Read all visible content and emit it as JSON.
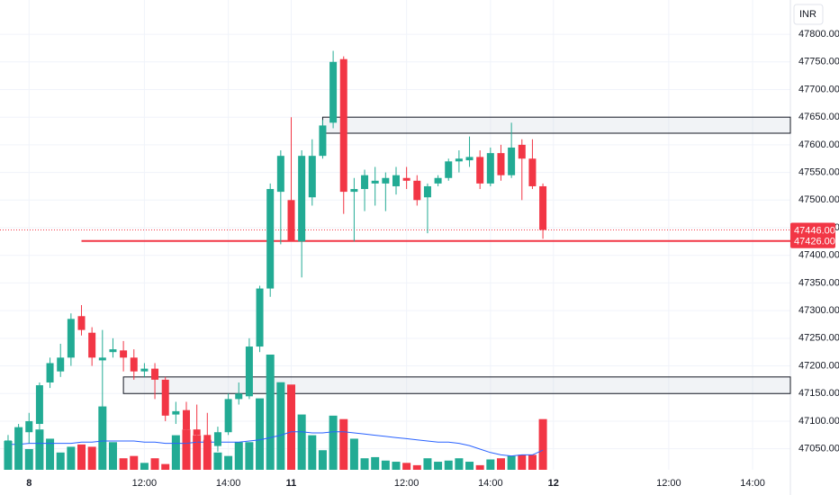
{
  "chart_data": {
    "type": "candlestick",
    "currency": "INR",
    "up_color": "#22ab94",
    "down_color": "#f23645",
    "x": [
      0,
      1,
      2,
      3,
      4,
      5,
      6,
      7,
      8,
      9,
      10,
      11,
      12,
      13,
      14,
      15,
      16,
      17,
      18,
      19,
      20,
      21,
      22,
      23,
      24,
      25,
      26,
      27,
      28,
      29,
      30,
      31,
      32,
      33,
      34,
      35,
      36,
      37,
      38,
      39,
      40,
      41,
      42,
      43,
      44,
      45,
      46,
      47,
      48,
      49,
      50,
      51
    ],
    "open": [
      47048,
      47057,
      47080,
      47095,
      47170,
      47190,
      47215,
      47290,
      47260,
      47210,
      47225,
      47228,
      47215,
      47190,
      47195,
      47175,
      47112,
      47120,
      47085,
      47075,
      47055,
      47080,
      47140,
      47145,
      47235,
      47340,
      47515,
      47500,
      47425,
      47505,
      47580,
      47640,
      47755,
      47515,
      47520,
      47530,
      47530,
      47525,
      47540,
      47535,
      47505,
      47530,
      47540,
      47570,
      47572,
      47578,
      47530,
      47585,
      47545,
      47600,
      47575,
      47525
    ],
    "high": [
      47075,
      47095,
      47115,
      47170,
      47215,
      47240,
      47295,
      47310,
      47270,
      47265,
      47250,
      47245,
      47230,
      47205,
      47205,
      47180,
      47135,
      47135,
      47130,
      47115,
      47090,
      47150,
      47170,
      47250,
      47345,
      47530,
      47590,
      47650,
      47590,
      47610,
      47645,
      47770,
      47760,
      47540,
      47555,
      47560,
      47550,
      47560,
      47560,
      47545,
      47530,
      47545,
      47575,
      47590,
      47615,
      47590,
      47595,
      47600,
      47640,
      47610,
      47610,
      47530
    ],
    "low": [
      47040,
      47045,
      47060,
      47085,
      47160,
      47180,
      47200,
      47255,
      47200,
      47100,
      47215,
      47190,
      47175,
      47180,
      47140,
      47100,
      47095,
      47060,
      47050,
      47030,
      47045,
      47075,
      47130,
      47140,
      47225,
      47325,
      47420,
      47425,
      47360,
      47490,
      47575,
      47630,
      47475,
      47425,
      47480,
      47490,
      47480,
      47510,
      47520,
      47490,
      47440,
      47525,
      47535,
      47550,
      47560,
      47520,
      47525,
      47535,
      47540,
      47500,
      47520,
      47430
    ],
    "close": [
      47065,
      47085,
      47100,
      47165,
      47205,
      47215,
      47285,
      47265,
      47215,
      47215,
      47230,
      47215,
      47190,
      47195,
      47175,
      47110,
      47118,
      47085,
      47075,
      47050,
      47080,
      47140,
      47150,
      47235,
      47340,
      47520,
      47580,
      47425,
      47580,
      47580,
      47635,
      47750,
      47515,
      47520,
      47545,
      47535,
      47540,
      47545,
      47535,
      47500,
      47525,
      47540,
      47570,
      47575,
      47578,
      47530,
      47585,
      47545,
      47595,
      47575,
      47525,
      47446
    ],
    "volume": [
      25,
      37,
      18,
      35,
      27,
      15,
      20,
      22,
      20,
      55,
      24,
      10,
      12,
      6,
      10,
      5,
      30,
      35,
      30,
      26,
      15,
      12,
      24,
      24,
      62,
      100,
      76,
      74,
      48,
      30,
      17,
      47,
      44,
      27,
      10,
      11,
      8,
      7,
      6,
      4,
      10,
      7,
      8,
      10,
      7,
      4,
      9,
      10,
      12,
      13,
      13,
      44
    ],
    "volume_ma": [
      22,
      22,
      23,
      23,
      23,
      23,
      23,
      24,
      24,
      25,
      25,
      25,
      25,
      24,
      24,
      23,
      23,
      23,
      24,
      24,
      24,
      24,
      24,
      25,
      26,
      28,
      30,
      33,
      33,
      32,
      32,
      33,
      33,
      32,
      31,
      30,
      29,
      28,
      27,
      26,
      25,
      24,
      24,
      23,
      21,
      18,
      15,
      13,
      12,
      13,
      13,
      17
    ],
    "vlim": [
      0,
      100
    ],
    "ylim": [
      47012,
      47862
    ],
    "yticks": [
      {
        "value": 47050,
        "label": "47050.00"
      },
      {
        "value": 47100,
        "label": "47100.00"
      },
      {
        "value": 47150,
        "label": "47150.00"
      },
      {
        "value": 47200,
        "label": "47200.00"
      },
      {
        "value": 47250,
        "label": "47250.00"
      },
      {
        "value": 47300,
        "label": "47300.00"
      },
      {
        "value": 47350,
        "label": "47350.00"
      },
      {
        "value": 47400,
        "label": "47400.00"
      },
      {
        "value": 47450,
        "label": "47450.00"
      },
      {
        "value": 47500,
        "label": "47500.00"
      },
      {
        "value": 47550,
        "label": "47550.00"
      },
      {
        "value": 47600,
        "label": "47600.00"
      },
      {
        "value": 47650,
        "label": "47650.00"
      },
      {
        "value": 47700,
        "label": "47700.00"
      },
      {
        "value": 47750,
        "label": "47750.00"
      },
      {
        "value": 47800,
        "label": "47800.00"
      }
    ],
    "xlim": [
      -0.77,
      74.6
    ],
    "xticks": [
      {
        "value": 2,
        "label": "8"
      },
      {
        "value": 13,
        "label": "12:00"
      },
      {
        "value": 21,
        "label": "14:00"
      },
      {
        "value": 27,
        "label": "11"
      },
      {
        "value": 38,
        "label": "12:00"
      },
      {
        "value": 46,
        "label": "14:00"
      },
      {
        "value": 52,
        "label": "12"
      },
      {
        "value": 63,
        "label": "12:00"
      },
      {
        "value": 71,
        "label": "14:00"
      }
    ],
    "grid": true,
    "last_price": {
      "value": 47446,
      "label": "47446.00",
      "color": "#f23645"
    },
    "level": {
      "value": 47426,
      "label": "47426.00",
      "color": "#f23645",
      "from_x": 7
    },
    "zones": [
      {
        "from_x": 30,
        "low": 47621,
        "high": 47650
      },
      {
        "from_x": 11,
        "low": 47150,
        "high": 47180
      }
    ],
    "volume_ma_color": "#2962ff"
  }
}
